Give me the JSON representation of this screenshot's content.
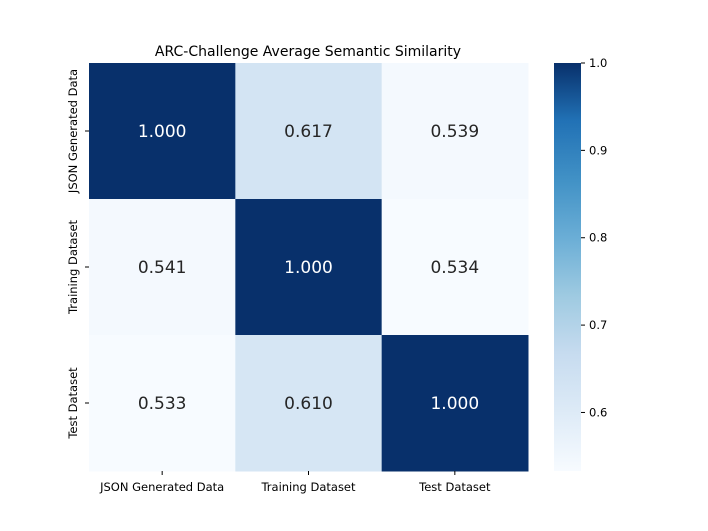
{
  "chart_data": {
    "type": "heatmap",
    "title": "ARC-Challenge Average Semantic Similarity",
    "x_categories": [
      "JSON Generated Data",
      "Training Dataset",
      "Test Dataset"
    ],
    "y_categories": [
      "JSON Generated Data",
      "Training Dataset",
      "Test Dataset"
    ],
    "values": [
      [
        1.0,
        0.617,
        0.539
      ],
      [
        0.541,
        1.0,
        0.534
      ],
      [
        0.533,
        0.61,
        1.0
      ]
    ],
    "annotations": [
      [
        "1.000",
        "0.617",
        "0.539"
      ],
      [
        "0.541",
        "1.000",
        "0.534"
      ],
      [
        "0.533",
        "0.610",
        "1.000"
      ]
    ],
    "colormap": "Blues",
    "vmin": 0.533,
    "vmax": 1.0,
    "colorbar_ticks": [
      "0.6",
      "0.7",
      "0.8",
      "0.9",
      "1.0"
    ]
  }
}
